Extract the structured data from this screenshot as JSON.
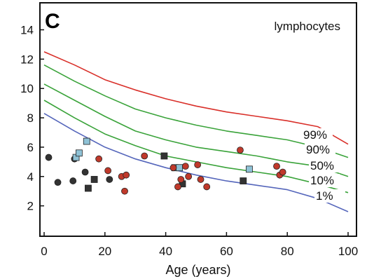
{
  "chart_data": {
    "type": "scatter",
    "panel_label": "C",
    "annotation": "lymphocytes",
    "xlabel": "Age (years)",
    "ylabel": "",
    "xlim": [
      0,
      100
    ],
    "ylim": [
      0,
      15.5
    ],
    "xticks": [
      "0",
      "20",
      "40",
      "60",
      "80",
      "100"
    ],
    "yticks": [
      "2",
      "4",
      "6",
      "8",
      "10",
      "12",
      "14"
    ],
    "grid": false,
    "percentile_curves": [
      {
        "name": "99%",
        "color": "#d9302a",
        "x": [
          0,
          10,
          20,
          30,
          40,
          50,
          60,
          70,
          80,
          90,
          100
        ],
        "y": [
          12.5,
          11.6,
          10.6,
          9.9,
          9.3,
          8.8,
          8.4,
          8.1,
          7.8,
          7.4,
          6.2
        ]
      },
      {
        "name": "90%",
        "color": "#3aa33a",
        "x": [
          0,
          10,
          20,
          30,
          40,
          50,
          60,
          70,
          80,
          90,
          100
        ],
        "y": [
          11.6,
          10.5,
          9.5,
          8.6,
          8.0,
          7.5,
          7.1,
          6.8,
          6.5,
          6.0,
          5.3
        ]
      },
      {
        "name": "50%",
        "color": "#3aa33a",
        "x": [
          0,
          10,
          20,
          30,
          40,
          50,
          60,
          70,
          80,
          90,
          100
        ],
        "y": [
          10.3,
          9.2,
          8.1,
          7.1,
          6.5,
          6.0,
          5.7,
          5.4,
          5.0,
          4.7,
          4.0
        ]
      },
      {
        "name": "10%",
        "color": "#3aa33a",
        "x": [
          0,
          10,
          20,
          30,
          40,
          50,
          60,
          70,
          80,
          90,
          100
        ],
        "y": [
          9.2,
          8.0,
          6.9,
          6.1,
          5.4,
          5.0,
          4.6,
          4.3,
          4.0,
          3.5,
          2.9
        ]
      },
      {
        "name": "1%",
        "color": "#5566bb",
        "x": [
          0,
          10,
          20,
          30,
          40,
          50,
          60,
          70,
          80,
          90,
          100
        ],
        "y": [
          8.3,
          7.1,
          6.0,
          5.2,
          4.6,
          4.1,
          3.7,
          3.4,
          3.1,
          2.5,
          1.6
        ]
      }
    ],
    "series": [
      {
        "marker": "circle-dark",
        "color": "#333333",
        "points": [
          [
            1.5,
            5.3
          ],
          [
            4.5,
            3.6
          ],
          [
            9.5,
            3.7
          ],
          [
            10.0,
            5.2
          ],
          [
            13.5,
            4.3
          ],
          [
            21.5,
            3.8
          ]
        ]
      },
      {
        "marker": "square-dark",
        "color": "#333333",
        "points": [
          [
            14.5,
            3.2
          ],
          [
            16.5,
            3.8
          ],
          [
            39.5,
            5.4
          ],
          [
            45.5,
            3.5
          ],
          [
            65.5,
            3.7
          ]
        ]
      },
      {
        "marker": "square-blue",
        "color": "#8fc2d6",
        "points": [
          [
            10.5,
            5.3
          ],
          [
            11.5,
            5.6
          ],
          [
            14.0,
            6.4
          ],
          [
            43.0,
            4.6
          ],
          [
            44.5,
            4.6
          ],
          [
            67.5,
            4.5
          ]
        ]
      },
      {
        "marker": "circle-red",
        "color": "#c0392b",
        "points": [
          [
            18.0,
            5.2
          ],
          [
            21.0,
            4.4
          ],
          [
            25.5,
            4.0
          ],
          [
            26.5,
            3.0
          ],
          [
            27.0,
            4.1
          ],
          [
            33.0,
            5.4
          ],
          [
            42.5,
            4.6
          ],
          [
            44.0,
            3.3
          ],
          [
            45.0,
            3.8
          ],
          [
            46.5,
            4.7
          ],
          [
            47.5,
            4.0
          ],
          [
            50.5,
            4.8
          ],
          [
            51.5,
            3.8
          ],
          [
            53.5,
            3.3
          ],
          [
            64.5,
            5.8
          ],
          [
            76.5,
            4.7
          ],
          [
            77.5,
            4.1
          ],
          [
            78.5,
            4.3
          ]
        ]
      }
    ]
  }
}
